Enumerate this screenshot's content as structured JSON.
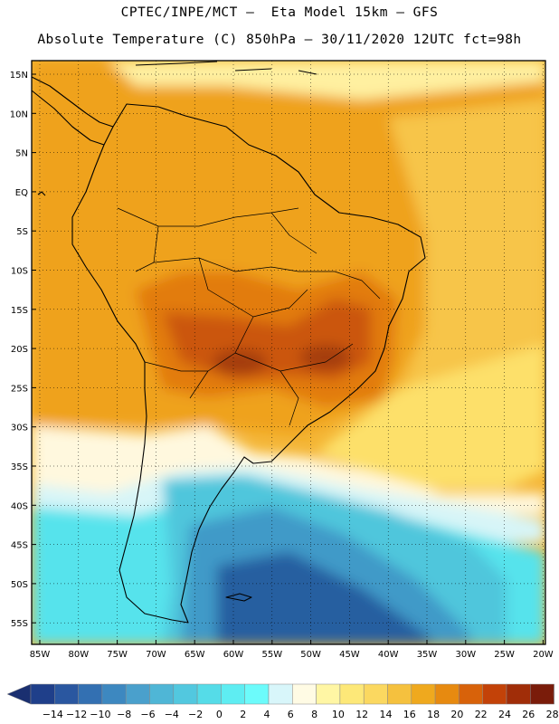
{
  "header": {
    "line1": "CPTEC/INPE/MCT —  Eta Model 15km — GFS",
    "line2": "Absolute Temperature (C) 850hPa — 30/11/2020 12UTC fct=98h"
  },
  "map": {
    "lon_ticks": [
      "85W",
      "80W",
      "75W",
      "70W",
      "65W",
      "60W",
      "55W",
      "50W",
      "45W",
      "40W",
      "35W",
      "30W",
      "25W",
      "20W"
    ],
    "lat_ticks": [
      "15N",
      "10N",
      "5N",
      "EQ",
      "5S",
      "10S",
      "15S",
      "20S",
      "25S",
      "30S",
      "35S",
      "40S",
      "45S",
      "50S",
      "55S"
    ],
    "colors": {
      "cold_deep": "#275ea0",
      "cold_mid": "#3f9ac8",
      "cool": "#4fc6dc",
      "cyan": "#56e3ec",
      "pale_cyan": "#d7f5f8",
      "cream": "#fff8de",
      "light_yellow": "#fff0a0",
      "yellow": "#fde06a",
      "gold": "#f7c548",
      "orange_light": "#f4b534",
      "orange": "#efa21c",
      "dark_orange": "#e27b10",
      "red_orange": "#cb560b",
      "brown": "#a43c0a",
      "coast": "#000000"
    }
  },
  "colorbar": {
    "labels": [
      "-14",
      "-12",
      "-10",
      "-8",
      "-6",
      "-4",
      "-2",
      "0",
      "2",
      "4",
      "6",
      "8",
      "10",
      "12",
      "14",
      "16",
      "18",
      "20",
      "22",
      "24",
      "26",
      "28"
    ],
    "colors": [
      "#1f3f8a",
      "#2a57a0",
      "#3370b2",
      "#3d88c0",
      "#4aa0cc",
      "#4fb6d6",
      "#52c8df",
      "#55dce8",
      "#5eedf2",
      "#6cfbfb",
      "#d8f6fa",
      "#fffbe4",
      "#fff6a4",
      "#fde878",
      "#fbd860",
      "#f5c13e",
      "#efa91e",
      "#e78a10",
      "#d8620a",
      "#c34208",
      "#a02d08",
      "#7a1c0a"
    ],
    "left_arrow_color": "#1a2f70",
    "right_arrow_color": "#6a0018"
  }
}
